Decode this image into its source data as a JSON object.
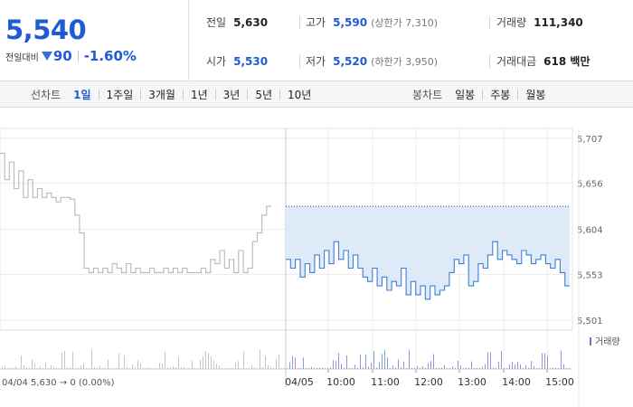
{
  "quote": {
    "price": "5,540",
    "change_label": "전일대비",
    "change_amount": "90",
    "change_rate": "-1.60%",
    "fields": [
      {
        "key": "전일",
        "value": "5,630",
        "sub": "",
        "color": "dark"
      },
      {
        "key": "고가",
        "value": "5,590",
        "sub": "(상한가 7,310)",
        "color": "blue"
      },
      {
        "key": "거래량",
        "value": "111,340",
        "sub": "",
        "color": "dark"
      },
      {
        "key": "시가",
        "value": "5,530",
        "sub": "",
        "color": "blue"
      },
      {
        "key": "저가",
        "value": "5,520",
        "sub": "(하한가 3,950)",
        "color": "blue"
      },
      {
        "key": "거래대금",
        "value": "618 백만",
        "sub": "",
        "color": "dark"
      }
    ]
  },
  "tabs": {
    "line_header": "선차트",
    "line_items": [
      "1일",
      "1주일",
      "3개월",
      "1년",
      "3년",
      "5년",
      "10년"
    ],
    "line_active": "1일",
    "candle_header": "봉차트",
    "candle_items": [
      "일봉",
      "주봉",
      "월봉"
    ]
  },
  "chart_data": {
    "type": "line",
    "ylim": [
      5490,
      5718
    ],
    "yticks": [
      5707,
      5656,
      5604,
      5553,
      5501
    ],
    "ytick_labels": [
      "5,707",
      "5,656",
      "5,604",
      "5,553",
      "5,501"
    ],
    "xtick_labels": [
      "04/05",
      "10:00",
      "11:00",
      "12:00",
      "13:00",
      "14:00",
      "15:00"
    ],
    "prev_close": 5630,
    "volume_legend": "거래량",
    "status_text": "04/04  5,630 → 0 (0.00%)",
    "series": [
      {
        "day": "04/04",
        "color": "#b9b9b9",
        "values": [
          5690,
          5660,
          5680,
          5650,
          5670,
          5640,
          5660,
          5640,
          5650,
          5640,
          5645,
          5640,
          5635,
          5640,
          5640,
          5638,
          5620,
          5600,
          5560,
          5555,
          5560,
          5555,
          5560,
          5555,
          5565,
          5560,
          5555,
          5565,
          5555,
          5560,
          5555,
          5555,
          5560,
          5555,
          5555,
          5560,
          5555,
          5560,
          5555,
          5560,
          5555,
          5555,
          5555,
          5560,
          5555,
          5570,
          5565,
          5580,
          5560,
          5570,
          5555,
          5580,
          5555,
          5560,
          5590,
          5600,
          5620,
          5630
        ]
      },
      {
        "day": "04/05",
        "color": "#3f7fd6",
        "values": [
          5570,
          5560,
          5570,
          5550,
          5565,
          5555,
          5575,
          5560,
          5580,
          5565,
          5590,
          5570,
          5580,
          5560,
          5575,
          5560,
          5550,
          5545,
          5560,
          5540,
          5550,
          5535,
          5545,
          5540,
          5560,
          5530,
          5545,
          5530,
          5540,
          5525,
          5540,
          5530,
          5535,
          5540,
          5555,
          5570,
          5565,
          5575,
          5540,
          5545,
          5565,
          5560,
          5575,
          5590,
          5570,
          5580,
          5575,
          5570,
          5565,
          5580,
          5575,
          5565,
          5570,
          5575,
          5565,
          5560,
          5570,
          5555,
          5540
        ]
      }
    ]
  }
}
